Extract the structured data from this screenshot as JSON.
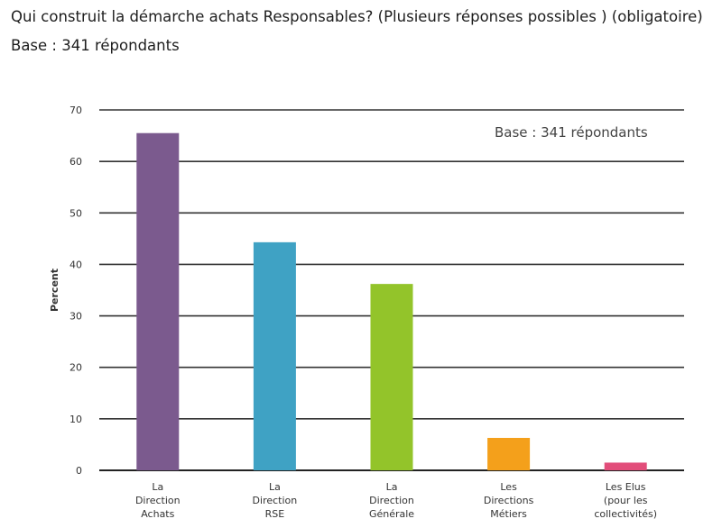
{
  "header": {
    "question": "Qui construit la démarche achats Responsables? (Plusieurs réponses possibles ) (obligatoire)",
    "base": "Base : 341 répondants"
  },
  "chart_data": {
    "type": "bar",
    "categories": [
      [
        "La",
        "Direction",
        "Achats"
      ],
      [
        "La",
        "Direction",
        "RSE"
      ],
      [
        "La",
        "Direction",
        "Générale"
      ],
      [
        "Les",
        "Directions",
        "Métiers"
      ],
      [
        "Les Elus",
        "(pour les",
        "collectivités)"
      ]
    ],
    "values": [
      65.5,
      44.3,
      36.2,
      6.3,
      1.5
    ],
    "colors": [
      "#7b5a8e",
      "#3fa2c4",
      "#93c42a",
      "#f4a01b",
      "#e24d7a"
    ],
    "ylabel": "Percent",
    "ylim": [
      0,
      70
    ],
    "yticks": [
      0,
      10,
      20,
      30,
      40,
      50,
      60,
      70
    ],
    "annotation": "Base : 341 répondants",
    "grid": true
  }
}
